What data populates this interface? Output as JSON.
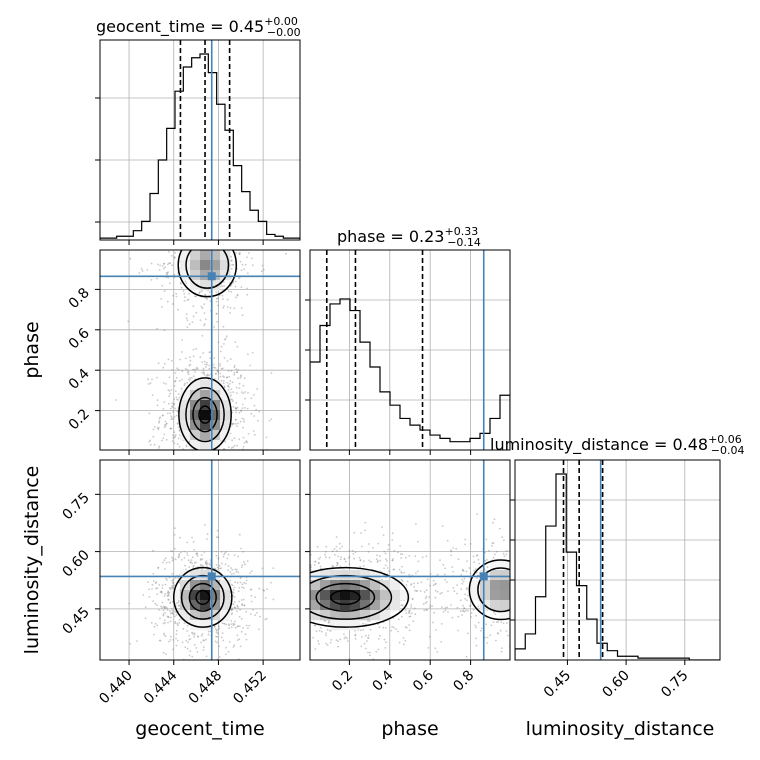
{
  "chart_data": {
    "type": "corner",
    "parameters": [
      "geocent_time",
      "phase",
      "luminosity_distance"
    ],
    "truths": {
      "geocent_time": 0.4474,
      "phase": 0.865,
      "luminosity_distance": 0.535
    },
    "truth_color": "#4682b4",
    "titles": [
      {
        "param": "geocent_time",
        "median": "0.45",
        "plus": "+0.00",
        "minus": "−0.00"
      },
      {
        "param": "phase",
        "median": "0.23",
        "plus": "+0.33",
        "minus": "−0.14"
      },
      {
        "param": "luminosity_distance",
        "median": "0.48",
        "plus": "+0.06",
        "minus": "−0.04"
      }
    ],
    "axis_labels": {
      "x": [
        "geocent_time",
        "phase",
        "luminosity_distance"
      ],
      "y": [
        "phase",
        "luminosity_distance"
      ]
    },
    "tick_labels": {
      "geocent_time": [
        "0.440",
        "0.444",
        "0.448",
        "0.452"
      ],
      "phase_x": [
        "0.2",
        "0.4",
        "0.6",
        "0.8"
      ],
      "phase_y": [
        "0.2",
        "0.4",
        "0.6",
        "0.8"
      ],
      "luminosity_distance_x": [
        "0.45",
        "0.60",
        "0.75"
      ],
      "luminosity_distance_y": [
        "0.45",
        "0.60",
        "0.75"
      ]
    },
    "tick_values": {
      "geocent_time": [
        0.44,
        0.444,
        0.448,
        0.452
      ],
      "phase": [
        0.2,
        0.4,
        0.6,
        0.8
      ],
      "luminosity_distance": [
        0.45,
        0.6,
        0.75
      ]
    },
    "ranges": {
      "geocent_time": [
        0.4374,
        0.4553
      ],
      "phase": [
        0.005,
        0.995
      ],
      "luminosity_distance": [
        0.316,
        0.84
      ]
    },
    "quantiles": {
      "geocent_time": [
        0.4446,
        0.4468,
        0.449
      ],
      "phase": [
        0.088,
        0.23,
        0.562
      ],
      "luminosity_distance": [
        0.44,
        0.48,
        0.54
      ]
    },
    "hist_geocent_time": [
      0.01,
      0.01,
      0.02,
      0.02,
      0.05,
      0.1,
      0.25,
      0.43,
      0.6,
      0.8,
      0.93,
      0.98,
      1.0,
      0.9,
      0.73,
      0.59,
      0.4,
      0.26,
      0.16,
      0.1,
      0.03,
      0.02,
      0.01,
      0.01
    ],
    "hist_phase": [
      0.53,
      0.75,
      0.88,
      0.91,
      0.84,
      0.65,
      0.5,
      0.35,
      0.27,
      0.19,
      0.15,
      0.12,
      0.09,
      0.07,
      0.05,
      0.05,
      0.07,
      0.1,
      0.19,
      0.33
    ],
    "hist_luminosity_distance": [
      0.06,
      0.14,
      0.34,
      0.72,
      1.0,
      0.58,
      0.4,
      0.22,
      0.09,
      0.05,
      0.02,
      0.02,
      0.01,
      0.01,
      0.01,
      0.01,
      0.01,
      0.0,
      0.0,
      0.0
    ],
    "blob_phase_geocent": [
      {
        "x": 0.4468,
        "y": 0.18,
        "sx": 0.0009,
        "sy": 0.07,
        "w": 1.0
      },
      {
        "x": 0.447,
        "y": 0.92,
        "sx": 0.001,
        "sy": 0.06,
        "w": 0.5
      }
    ],
    "blob_lum_geocent": [
      {
        "x": 0.4466,
        "y": 0.48,
        "sx": 0.001,
        "sy": 0.03,
        "w": 1.0
      }
    ],
    "blob_lum_phase": [
      {
        "x": 0.18,
        "y": 0.48,
        "sx": 0.12,
        "sy": 0.03,
        "w": 1.0
      },
      {
        "x": 0.95,
        "y": 0.5,
        "sx": 0.06,
        "sy": 0.03,
        "w": 0.5
      }
    ],
    "grid": true
  }
}
